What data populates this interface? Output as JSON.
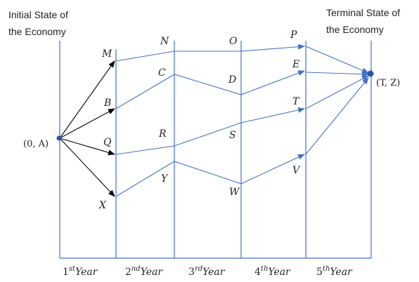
{
  "captions": {
    "initial": [
      "Initial State of",
      "the Economy"
    ],
    "terminal": [
      "Terminal State of",
      "the Economy"
    ]
  },
  "endpoints": {
    "start": "(0, A)",
    "end": "(T, Z)"
  },
  "years": [
    {
      "num": "1",
      "sup": "st",
      "word": "Year"
    },
    {
      "num": "2",
      "sup": "nd",
      "word": "Year"
    },
    {
      "num": "3",
      "sup": "rd",
      "word": "Year"
    },
    {
      "num": "4",
      "sup": "th",
      "word": "Year"
    },
    {
      "num": "5",
      "sup": "th",
      "word": "Year"
    }
  ],
  "nodes": {
    "M": "M",
    "B": "B",
    "Q": "Q",
    "X": "X",
    "N": "N",
    "C": "C",
    "R": "R",
    "Y": "Y",
    "O": "O",
    "D": "D",
    "S": "S",
    "W": "W",
    "P": "P",
    "E": "E",
    "T": "T",
    "V": "V"
  },
  "colors": {
    "stage_line": "#4472c4",
    "first_step_arrow": "#000000",
    "text": "#222222"
  }
}
